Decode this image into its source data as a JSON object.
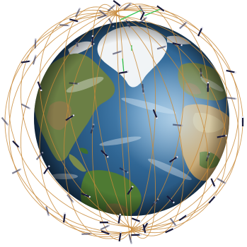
{
  "scene": {
    "description_visible_text": "",
    "colors": {
      "background": "#ffffff",
      "ocean_deep": "#1d3f63",
      "ocean_mid": "#2e5f8c",
      "ocean_light": "#4f86b4",
      "land_green": "#5b7a3a",
      "land_brown": "#8a7448",
      "land_desert": "#c8a56b",
      "ice": "#f2f5f7",
      "orbit_line": "#c8893a",
      "satellite_body": "#1a1a3a",
      "satellite_panel": "#f0f0ff",
      "link_green": "#27c24a"
    },
    "orbit_count": 12,
    "satellite_count": 66
  }
}
